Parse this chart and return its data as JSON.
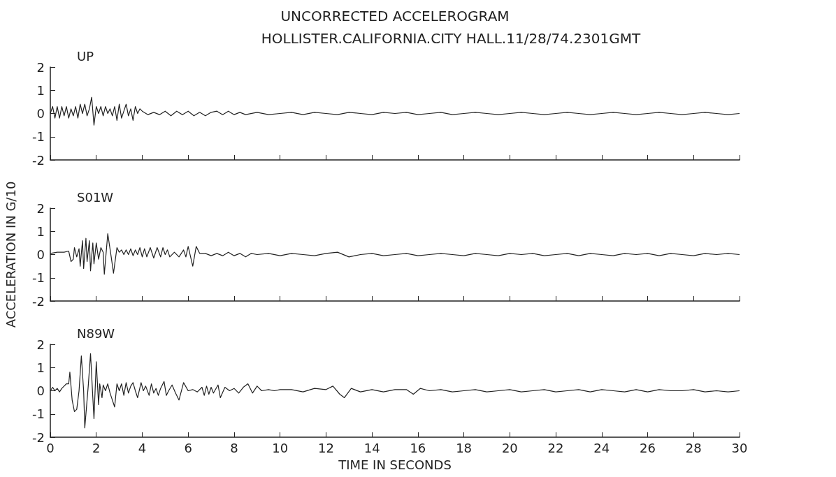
{
  "chart_data": [
    {
      "type": "line",
      "title": "UNCORRECTED ACCELEROGRAM",
      "subtitle": "HOLLISTER.CALIFORNIA.CITY HALL.11/28/74.2301GMT",
      "marker": "none",
      "grid": false,
      "tick_labels": "y",
      "xlim": [
        0,
        30
      ],
      "xticks": [
        0,
        2,
        4,
        6,
        8,
        10,
        12,
        14,
        16,
        18,
        20,
        22,
        24,
        26,
        28,
        30
      ],
      "ylim": [
        -2,
        2
      ],
      "yticks": [
        -2,
        -1,
        0,
        1,
        2
      ],
      "series": [
        {
          "name": "UP",
          "color": "#222222",
          "x": [
            0,
            0.1,
            0.2,
            0.3,
            0.4,
            0.5,
            0.6,
            0.7,
            0.8,
            0.9,
            1.0,
            1.1,
            1.2,
            1.3,
            1.4,
            1.5,
            1.6,
            1.7,
            1.8,
            1.9,
            2.0,
            2.1,
            2.2,
            2.3,
            2.4,
            2.5,
            2.6,
            2.7,
            2.8,
            2.9,
            3.0,
            3.1,
            3.2,
            3.3,
            3.4,
            3.5,
            3.6,
            3.7,
            3.8,
            3.9,
            4.0,
            4.25,
            4.5,
            4.75,
            5.0,
            5.25,
            5.5,
            5.75,
            6.0,
            6.25,
            6.5,
            6.75,
            7.0,
            7.25,
            7.5,
            7.75,
            8.0,
            8.25,
            8.5,
            9,
            9.5,
            10,
            10.5,
            11,
            11.5,
            12,
            12.5,
            13,
            13.5,
            14,
            14.5,
            15,
            15.5,
            16,
            16.5,
            17,
            17.5,
            18,
            18.5,
            19,
            19.5,
            20,
            20.5,
            21,
            21.5,
            22,
            22.5,
            23,
            23.5,
            24,
            24.5,
            25,
            25.5,
            26,
            26.5,
            27,
            27.5,
            28,
            28.5,
            29,
            29.5,
            30
          ],
          "values": [
            0,
            0.3,
            -0.2,
            0.3,
            -0.2,
            0.3,
            -0.1,
            0.3,
            -0.2,
            0.2,
            -0.1,
            0.3,
            -0.2,
            0.4,
            0,
            0.4,
            -0.1,
            0.2,
            0.7,
            -0.5,
            0.3,
            0,
            0.3,
            -0.1,
            0.3,
            0,
            0.2,
            -0.1,
            0.3,
            -0.3,
            0.4,
            -0.2,
            0.1,
            0.4,
            -0.1,
            0.2,
            -0.3,
            0.3,
            0,
            0.2,
            0.1,
            -0.05,
            0.05,
            -0.05,
            0.1,
            -0.1,
            0.1,
            -0.05,
            0.1,
            -0.1,
            0.05,
            -0.1,
            0.05,
            0.1,
            -0.05,
            0.1,
            -0.05,
            0.05,
            -0.05,
            0.05,
            -0.05,
            0,
            0.05,
            -0.05,
            0.05,
            0,
            -0.05,
            0.05,
            0,
            -0.05,
            0.05,
            0,
            0.05,
            -0.05,
            0,
            0.05,
            -0.05,
            0,
            0.05,
            0,
            -0.05,
            0,
            0.05,
            0,
            -0.05,
            0,
            0.05,
            0,
            -0.05,
            0,
            0.05,
            0,
            -0.05,
            0,
            0.05,
            0,
            -0.05,
            0,
            0.05,
            0,
            -0.05,
            0
          ]
        }
      ]
    },
    {
      "type": "line",
      "ylabel": "ACCELERATION IN G/10",
      "marker": "none",
      "grid": false,
      "tick_labels": "y",
      "xlim": [
        0,
        30
      ],
      "xticks": [
        0,
        2,
        4,
        6,
        8,
        10,
        12,
        14,
        16,
        18,
        20,
        22,
        24,
        26,
        28,
        30
      ],
      "ylim": [
        -2,
        2
      ],
      "yticks": [
        -2,
        -1,
        0,
        1,
        2
      ],
      "series": [
        {
          "name": "S01W",
          "color": "#222222",
          "x": [
            0,
            0.3,
            0.6,
            0.8,
            0.9,
            1.0,
            1.05,
            1.15,
            1.25,
            1.3,
            1.4,
            1.45,
            1.55,
            1.6,
            1.7,
            1.75,
            1.85,
            1.9,
            2.0,
            2.1,
            2.2,
            2.3,
            2.35,
            2.5,
            2.65,
            2.75,
            2.9,
            3.0,
            3.1,
            3.2,
            3.3,
            3.4,
            3.5,
            3.6,
            3.7,
            3.8,
            3.9,
            4.0,
            4.1,
            4.2,
            4.35,
            4.5,
            4.65,
            4.8,
            4.9,
            5.0,
            5.1,
            5.2,
            5.4,
            5.6,
            5.8,
            5.9,
            6.0,
            6.2,
            6.35,
            6.5,
            6.75,
            7.0,
            7.25,
            7.5,
            7.75,
            8.0,
            8.25,
            8.5,
            8.75,
            9,
            9.5,
            10,
            10.5,
            11,
            11.5,
            12,
            12.5,
            13,
            13.5,
            14,
            14.5,
            15,
            15.5,
            16,
            16.5,
            17,
            17.5,
            18,
            18.5,
            19,
            19.5,
            20,
            20.5,
            21,
            21.5,
            22,
            22.5,
            23,
            23.5,
            24,
            24.5,
            25,
            25.5,
            26,
            26.5,
            27,
            27.5,
            28,
            28.5,
            29,
            29.5,
            30
          ],
          "values": [
            0.05,
            0.1,
            0.1,
            0.15,
            -0.3,
            -0.2,
            0.3,
            -0.1,
            0.25,
            -0.5,
            0.6,
            -0.6,
            0.7,
            -0.3,
            0.6,
            -0.7,
            0.5,
            -0.4,
            0.5,
            -0.2,
            0.3,
            0.1,
            -0.85,
            0.9,
            -0.1,
            -0.8,
            0.3,
            0.1,
            0.2,
            0,
            0.2,
            0,
            0.25,
            -0.05,
            0.2,
            0,
            0.3,
            -0.1,
            0.25,
            -0.1,
            0.3,
            -0.15,
            0.3,
            -0.1,
            0.3,
            0,
            0.2,
            -0.1,
            0.1,
            -0.1,
            0.2,
            -0.1,
            0.35,
            -0.5,
            0.35,
            0.05,
            0.05,
            -0.05,
            0.05,
            -0.05,
            0.1,
            -0.05,
            0.05,
            -0.1,
            0.05,
            0,
            0.05,
            -0.05,
            0.05,
            0,
            -0.05,
            0.05,
            0.1,
            -0.1,
            0,
            0.05,
            -0.05,
            0,
            0.05,
            -0.05,
            0,
            0.05,
            0,
            -0.05,
            0.05,
            0,
            -0.05,
            0.05,
            0,
            0.05,
            -0.05,
            0,
            0.05,
            -0.05,
            0.05,
            0,
            -0.05,
            0.05,
            0,
            0.05,
            -0.05,
            0.05,
            0,
            -0.05,
            0.05,
            0,
            0.05,
            0
          ]
        }
      ]
    },
    {
      "type": "line",
      "xlabel": "TIME IN SECONDS",
      "marker": "none",
      "grid": false,
      "xlim": [
        0,
        30
      ],
      "xticks": [
        0,
        2,
        4,
        6,
        8,
        10,
        12,
        14,
        16,
        18,
        20,
        22,
        24,
        26,
        28,
        30
      ],
      "ylim": [
        -2,
        2
      ],
      "yticks": [
        -2,
        -1,
        0,
        1,
        2
      ],
      "series": [
        {
          "name": "N89W",
          "color": "#222222",
          "x": [
            0,
            0.1,
            0.2,
            0.3,
            0.4,
            0.5,
            0.6,
            0.7,
            0.8,
            0.85,
            0.95,
            1.05,
            1.15,
            1.25,
            1.35,
            1.45,
            1.5,
            1.55,
            1.65,
            1.75,
            1.85,
            1.9,
            2.0,
            2.1,
            2.15,
            2.25,
            2.3,
            2.4,
            2.5,
            2.6,
            2.8,
            2.9,
            3.0,
            3.1,
            3.2,
            3.3,
            3.4,
            3.5,
            3.6,
            3.7,
            3.8,
            3.95,
            4.05,
            4.15,
            4.3,
            4.4,
            4.5,
            4.6,
            4.7,
            4.8,
            4.95,
            5.05,
            5.15,
            5.3,
            5.45,
            5.6,
            5.8,
            6.0,
            6.2,
            6.4,
            6.6,
            6.7,
            6.8,
            6.9,
            7.0,
            7.1,
            7.3,
            7.4,
            7.6,
            7.8,
            8.0,
            8.2,
            8.4,
            8.6,
            8.8,
            9.0,
            9.2,
            9.5,
            9.75,
            10,
            10.5,
            11,
            11.5,
            12,
            12.3,
            12.6,
            12.8,
            13.1,
            13.5,
            14,
            14.5,
            15,
            15.5,
            15.8,
            16.1,
            16.5,
            17,
            17.5,
            18,
            18.5,
            19,
            19.5,
            20,
            20.5,
            21,
            21.5,
            22,
            22.5,
            23,
            23.5,
            24,
            24.5,
            25,
            25.5,
            26,
            26.5,
            27,
            27.5,
            28,
            28.5,
            29,
            29.5,
            30
          ],
          "values": [
            0,
            0.15,
            0,
            0.1,
            -0.05,
            0.1,
            0.2,
            0.3,
            0.3,
            0.8,
            -0.4,
            -0.9,
            -0.8,
            0,
            1.5,
            0,
            -1.6,
            -1.0,
            0.2,
            1.6,
            -0.3,
            -1.2,
            1.25,
            -0.6,
            0.3,
            -0.3,
            0.25,
            0,
            0.3,
            -0.1,
            -0.7,
            0.3,
            0,
            0.3,
            -0.2,
            0.35,
            -0.1,
            0.2,
            0.35,
            0,
            -0.3,
            0.35,
            0,
            0.2,
            -0.2,
            0.3,
            -0.1,
            0.1,
            -0.2,
            0.1,
            0.4,
            -0.2,
            0,
            0.25,
            -0.1,
            -0.4,
            0.35,
            0,
            0.05,
            -0.05,
            0.15,
            -0.2,
            0.2,
            -0.15,
            0.15,
            -0.1,
            0.25,
            -0.3,
            0.15,
            0,
            0.1,
            -0.1,
            0.15,
            0.3,
            -0.1,
            0.2,
            0,
            0.05,
            0,
            0.05,
            0.05,
            -0.05,
            0.1,
            0.05,
            0.2,
            -0.15,
            -0.3,
            0.1,
            -0.05,
            0.05,
            -0.05,
            0.05,
            0.05,
            -0.15,
            0.1,
            0,
            0.05,
            -0.05,
            0,
            0.05,
            -0.05,
            0,
            0.05,
            -0.05,
            0,
            0.05,
            -0.05,
            0,
            0.05,
            -0.05,
            0.05,
            0,
            -0.05,
            0.05,
            -0.05,
            0.05,
            0,
            0,
            0.05,
            -0.05,
            0,
            -0.05,
            0
          ]
        }
      ]
    }
  ]
}
